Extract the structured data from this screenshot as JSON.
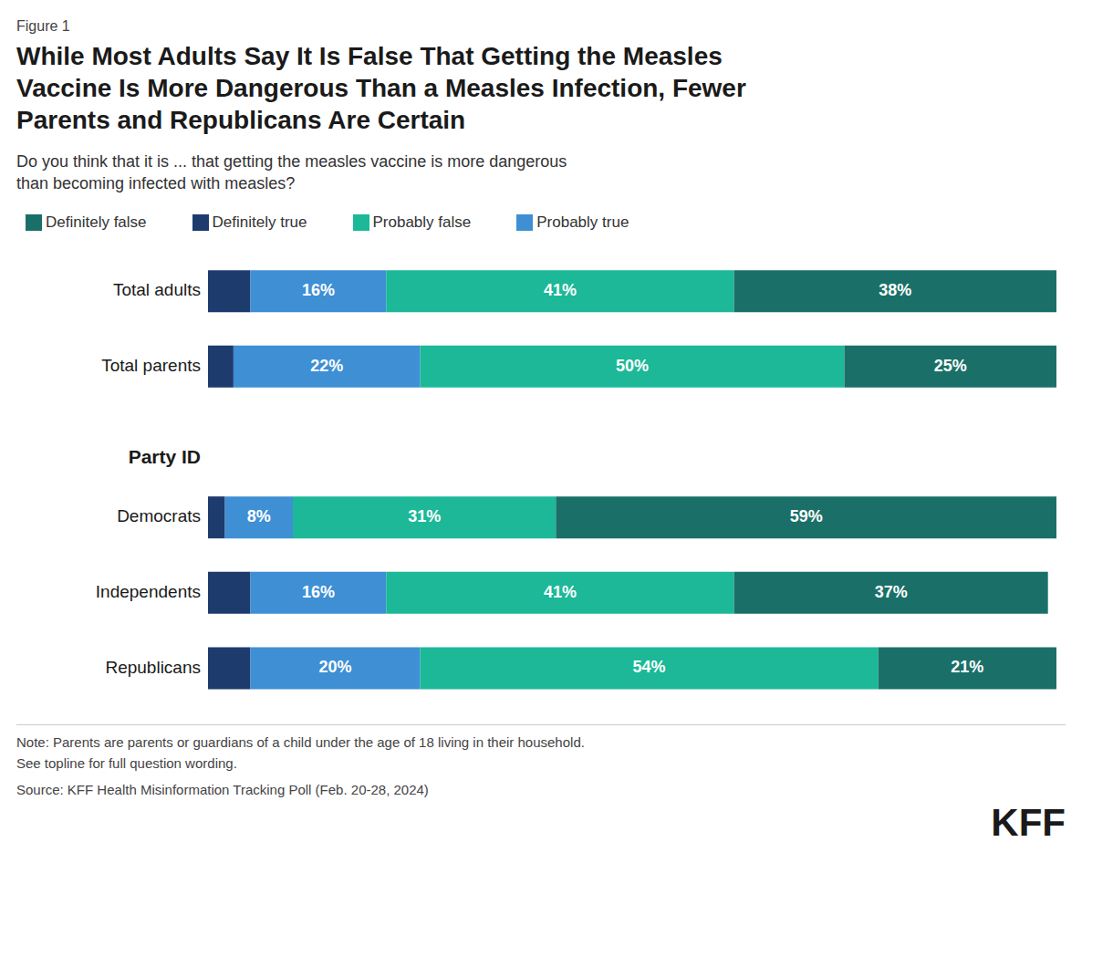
{
  "chart_data": {
    "type": "bar",
    "orientation": "horizontal",
    "stacked": true,
    "title": "While Most Adults Say It Is False That Getting the Measles\nVaccine Is More Dangerous Than a Measles Infection, Fewer\nParents and Republicans Are Certain",
    "subtitle": "Do you think that it is ... that getting the measles vaccine is more dangerous\nthan becoming infected with measles?",
    "categories": [
      "Total adults",
      "Total parents",
      "Democrats",
      "Independents",
      "Republicans"
    ],
    "series": [
      {
        "name": "Definitely true",
        "color": "#1e3b6e",
        "values": [
          5,
          3,
          2,
          5,
          5
        ],
        "data_labels": false
      },
      {
        "name": "Probably true",
        "color": "#3e8fd4",
        "values": [
          16,
          22,
          8,
          16,
          20
        ],
        "value_labels": [
          "16%",
          "22%",
          "8%",
          "16%",
          "20%"
        ]
      },
      {
        "name": "Probably false",
        "color": "#1cb898",
        "values": [
          41,
          50,
          31,
          41,
          54
        ],
        "value_labels": [
          "41%",
          "50%",
          "31%",
          "41%",
          "54%"
        ]
      },
      {
        "name": "Definitely false",
        "color": "#1a7068",
        "values": [
          38,
          25,
          59,
          37,
          21
        ],
        "value_labels": [
          "38%",
          "25%",
          "59%",
          "37%",
          "21%"
        ]
      }
    ],
    "xlim": [
      0,
      100
    ],
    "tick_labels": false,
    "grid": false,
    "legend": "top",
    "data_labels": true,
    "annotations": [
      "Figure 1",
      "Party ID",
      "Note: Parents are parents or guardians of a child under the age of 18 living in their household.",
      "See topline for full question wording.",
      "Source: KFF Health Misinformation Tracking Poll (Feb. 20-28, 2024)",
      "KFF"
    ]
  }
}
